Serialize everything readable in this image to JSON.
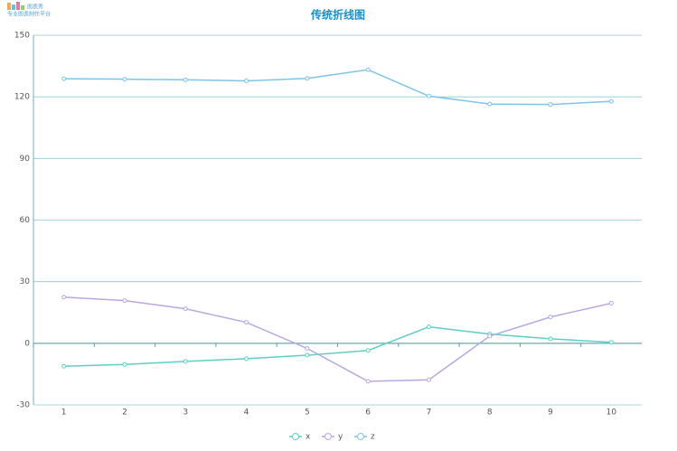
{
  "logo": {
    "name": "图表秀",
    "slogan": "专业图表制作平台"
  },
  "chart_data": {
    "type": "line",
    "title": "传统折线图",
    "categories": [
      "1",
      "2",
      "3",
      "4",
      "5",
      "6",
      "7",
      "8",
      "9",
      "10"
    ],
    "series": [
      {
        "name": "x",
        "color": "#5ccfc6",
        "values": [
          -11.2,
          -10.3,
          -8.8,
          -7.5,
          -5.8,
          -3.5,
          8.0,
          4.5,
          2.2,
          0.5
        ]
      },
      {
        "name": "y",
        "color": "#b8a8e0",
        "values": [
          22.5,
          20.8,
          16.8,
          10.2,
          -2.5,
          -18.5,
          -17.8,
          3.5,
          12.8,
          19.5
        ]
      },
      {
        "name": "z",
        "color": "#7ec4e8",
        "values": [
          128.8,
          128.6,
          128.3,
          127.8,
          129.0,
          133.2,
          120.4,
          116.5,
          116.3,
          117.8
        ]
      }
    ],
    "ylim": [
      -30,
      150
    ],
    "yticks": [
      -30,
      0,
      30,
      60,
      90,
      120,
      150
    ],
    "grid": true,
    "legend": "bottom"
  }
}
